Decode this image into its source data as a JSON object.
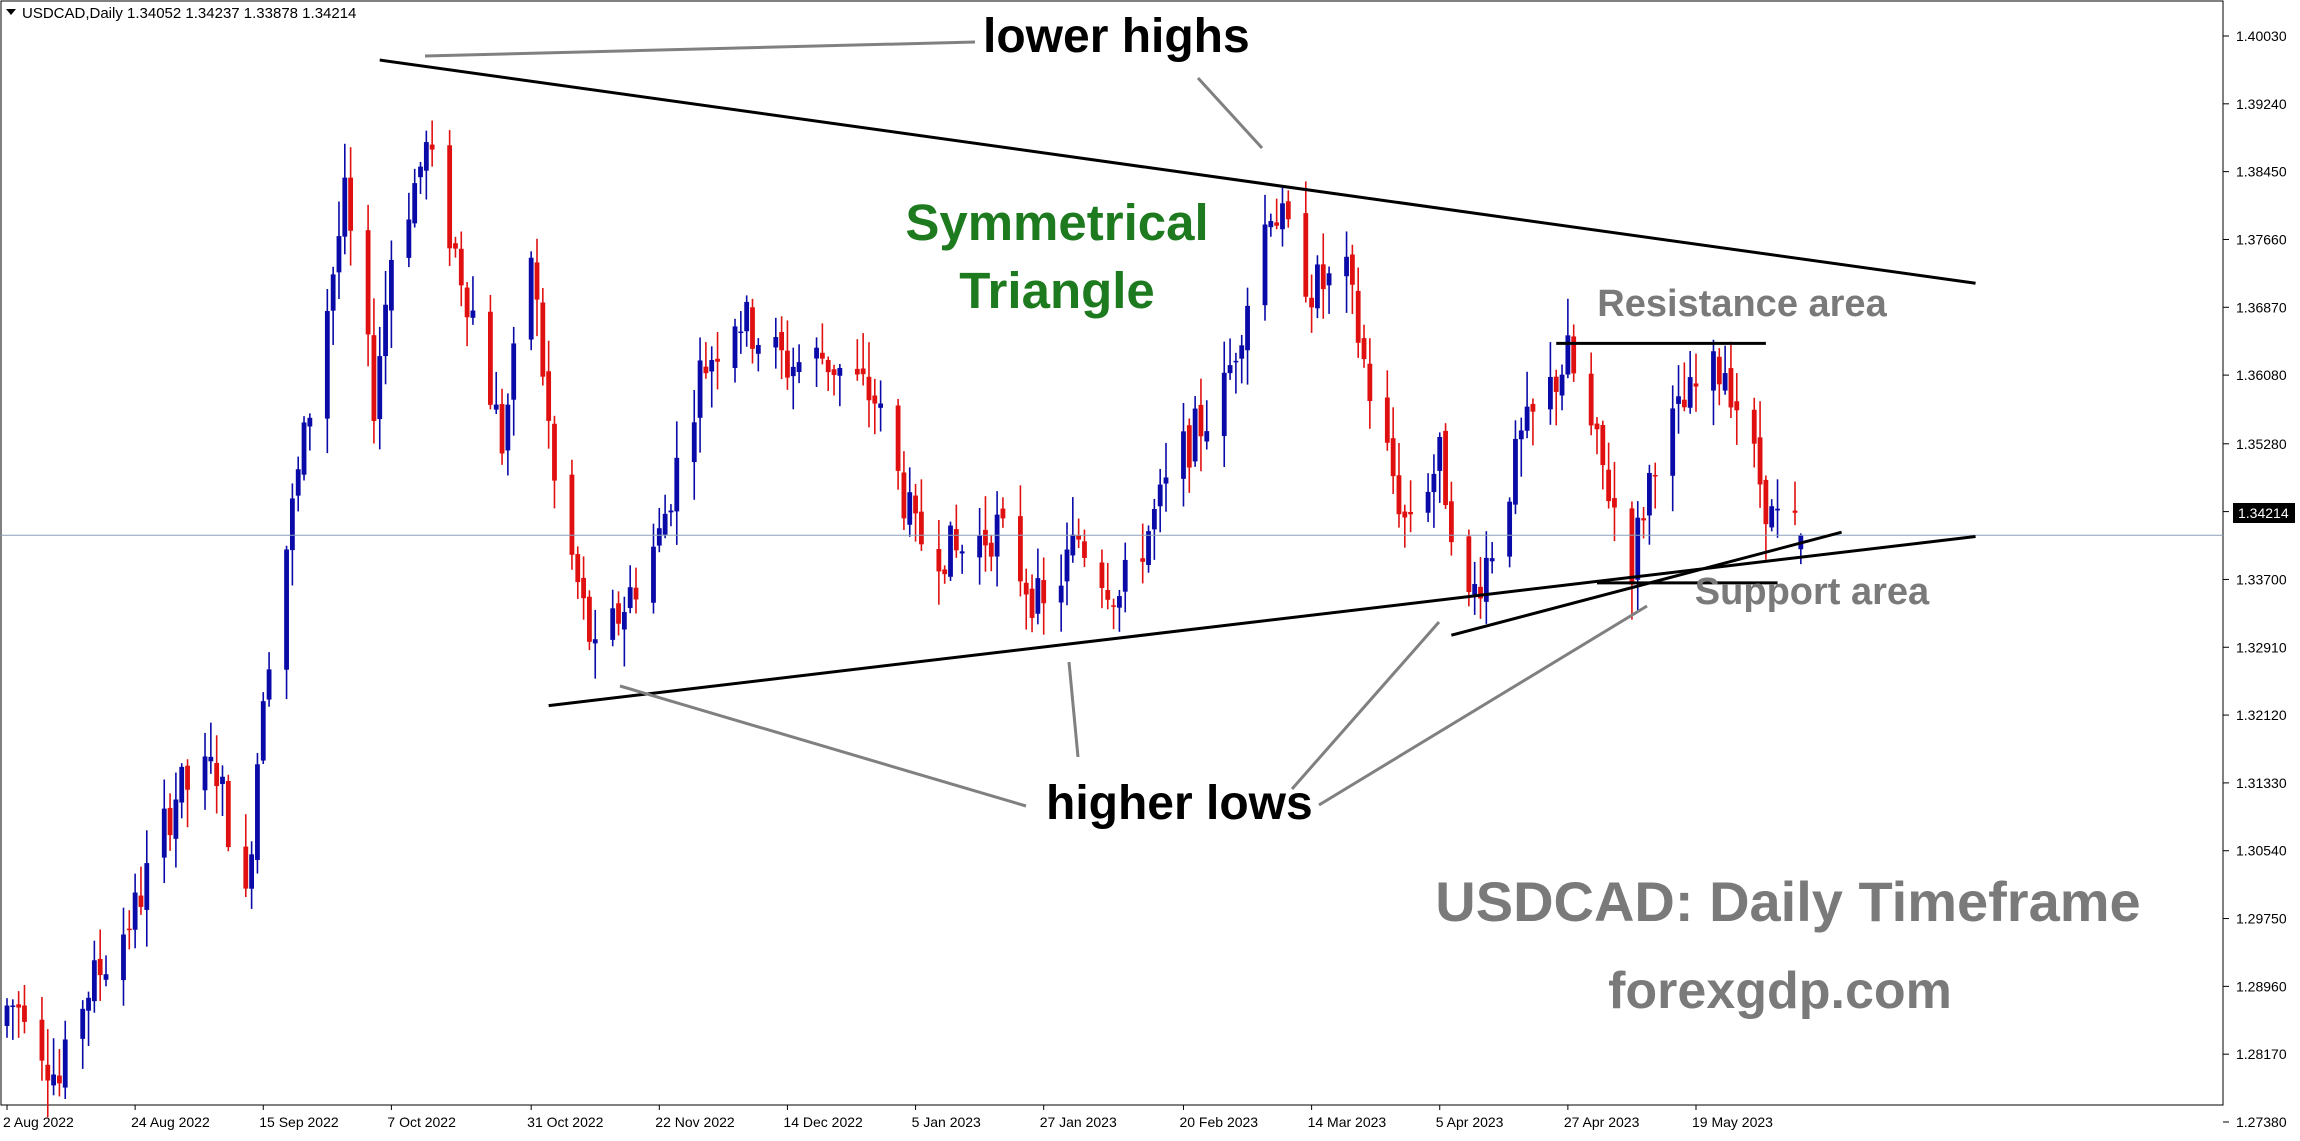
{
  "header": {
    "symbol_info": "USDCAD,Daily  1.34052 1.34237 1.33878 1.34214"
  },
  "current_price_label": "1.34214",
  "annotations": {
    "lower_highs": "lower highs",
    "higher_lows": "higher lows",
    "pattern_line1": "Symmetrical",
    "pattern_line2": "Triangle",
    "resistance": "Resistance area",
    "support": "Support area",
    "title": "USDCAD: Daily Timeframe",
    "site": "forexgdp.com"
  },
  "colors": {
    "bull": "#0a0aa8",
    "bear": "#e01010",
    "annotation_dark": "#000000",
    "annotation_green": "#1e7a1e",
    "annotation_gray": "#7a7a7a",
    "price_line": "#8aa0b8"
  },
  "chart_data": {
    "type": "candlestick",
    "symbol": "USDCAD",
    "timeframe": "Daily",
    "last": {
      "open": 1.34052,
      "high": 1.34237,
      "low": 1.33878,
      "close": 1.34214
    },
    "ylim": [
      1.2675,
      1.4055
    ],
    "y_ticks": [
      1.4003,
      1.3924,
      1.3845,
      1.3766,
      1.3687,
      1.3608,
      1.3528,
      1.3449,
      1.337,
      1.3291,
      1.3212,
      1.3133,
      1.3054,
      1.2975,
      1.2896,
      1.2817,
      1.2738
    ],
    "x_ticks": [
      "2 Aug 2022",
      "24 Aug 2022",
      "15 Sep 2022",
      "7 Oct 2022",
      "31 Oct 2022",
      "22 Nov 2022",
      "14 Dec 2022",
      "5 Jan 2023",
      "27 Jan 2023",
      "20 Feb 2023",
      "14 Mar 2023",
      "5 Apr 2023",
      "27 Apr 2023",
      "19 May 2023"
    ],
    "key_closes": [
      {
        "date": "2 Aug 2022",
        "close": 1.287
      },
      {
        "date": "5 Aug 2022",
        "close": 1.288
      },
      {
        "date": "11 Aug 2022",
        "close": 1.278
      },
      {
        "date": "15 Aug 2022",
        "close": 1.288
      },
      {
        "date": "24 Aug 2022",
        "close": 1.2985
      },
      {
        "date": "31 Aug 2022",
        "close": 1.312
      },
      {
        "date": "7 Sep 2022",
        "close": 1.315
      },
      {
        "date": "12 Sep 2022",
        "close": 1.299
      },
      {
        "date": "15 Sep 2022",
        "close": 1.325
      },
      {
        "date": "23 Sep 2022",
        "close": 1.357
      },
      {
        "date": "29 Sep 2022",
        "close": 1.381
      },
      {
        "date": "4 Oct 2022",
        "close": 1.358
      },
      {
        "date": "7 Oct 2022",
        "close": 1.375
      },
      {
        "date": "13 Oct 2022",
        "close": 1.387
      },
      {
        "date": "21 Oct 2022",
        "close": 1.368
      },
      {
        "date": "26 Oct 2022",
        "close": 1.353
      },
      {
        "date": "31 Oct 2022",
        "close": 1.375
      },
      {
        "date": "4 Nov 2022",
        "close": 1.348
      },
      {
        "date": "11 Nov 2022",
        "close": 1.3275
      },
      {
        "date": "22 Nov 2022",
        "close": 1.342
      },
      {
        "date": "29 Nov 2022",
        "close": 1.361
      },
      {
        "date": "5 Dec 2022",
        "close": 1.368
      },
      {
        "date": "14 Dec 2022",
        "close": 1.362
      },
      {
        "date": "20 Dec 2022",
        "close": 1.363
      },
      {
        "date": "29 Dec 2022",
        "close": 1.358
      },
      {
        "date": "5 Jan 2023",
        "close": 1.342
      },
      {
        "date": "12 Jan 2023",
        "close": 1.34
      },
      {
        "date": "19 Jan 2023",
        "close": 1.343
      },
      {
        "date": "27 Jan 2023",
        "close": 1.333
      },
      {
        "date": "2 Feb 2023",
        "close": 1.342
      },
      {
        "date": "9 Feb 2023",
        "close": 1.335
      },
      {
        "date": "20 Feb 2023",
        "close": 1.352
      },
      {
        "date": "27 Feb 2023",
        "close": 1.359
      },
      {
        "date": "7 Mar 2023",
        "close": 1.381
      },
      {
        "date": "14 Mar 2023",
        "close": 1.371
      },
      {
        "date": "20 Mar 2023",
        "close": 1.372
      },
      {
        "date": "24 Mar 2023",
        "close": 1.359
      },
      {
        "date": "30 Mar 2023",
        "close": 1.344
      },
      {
        "date": "5 Apr 2023",
        "close": 1.351
      },
      {
        "date": "10 Apr 2023",
        "close": 1.334
      },
      {
        "date": "14 Apr 2023",
        "close": 1.341
      },
      {
        "date": "19 Apr 2023",
        "close": 1.353
      },
      {
        "date": "27 Apr 2023",
        "close": 1.363
      },
      {
        "date": "1 May 2023",
        "close": 1.354
      },
      {
        "date": "8 May 2023",
        "close": 1.339
      },
      {
        "date": "12 May 2023",
        "close": 1.352
      },
      {
        "date": "19 May 2023",
        "close": 1.359
      },
      {
        "date": "24 May 2023",
        "close": 1.362
      },
      {
        "date": "1 Jun 2023",
        "close": 1.344
      },
      {
        "date": "6 Jun 2023",
        "close": 1.3421
      }
    ],
    "trendlines": [
      {
        "name": "lower highs",
        "from": {
          "date": "5 Oct 2022",
          "price": 1.3975
        },
        "to": {
          "date": "6 Jul 2023",
          "price": 1.3715
        }
      },
      {
        "name": "higher lows",
        "from": {
          "date": "3 Nov 2022",
          "price": 1.3223
        },
        "to": {
          "date": "6 Jul 2023",
          "price": 1.342
        }
      },
      {
        "name": "higher lows",
        "from": {
          "date": "7 Apr 2023",
          "price": 1.3305
        },
        "to": {
          "date": "13 Jun 2023",
          "price": 1.3425
        }
      }
    ],
    "levels": [
      {
        "name": "Resistance area",
        "price": 1.3645
      },
      {
        "name": "Support area",
        "price": 1.3366
      }
    ],
    "grid": false,
    "legend": "none"
  }
}
